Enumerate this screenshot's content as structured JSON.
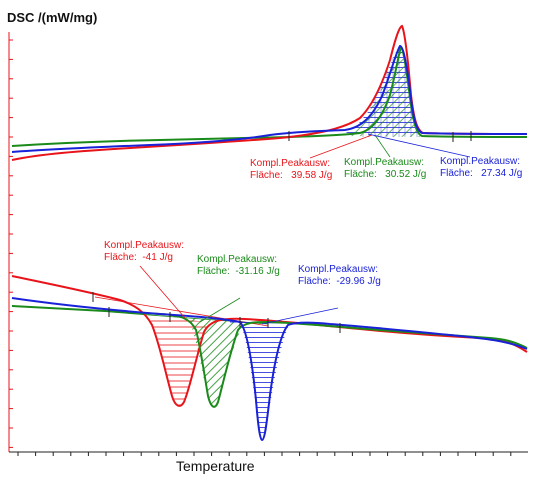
{
  "chart_data": {
    "type": "line",
    "ylabel": "DSC /(mW/mg)",
    "xlabel": "Temperature",
    "grid": false,
    "series": [
      {
        "color": "#e8141a"
      },
      {
        "color": "#1a8a1a"
      },
      {
        "color": "#1a22d8"
      }
    ],
    "annotations": [
      {
        "line1": "Kompl.Peakausw:",
        "line2": "Fläche:   39.58 J/g",
        "color": "#e8141a"
      },
      {
        "line1": "Kompl.Peakausw:",
        "line2": "Fläche:   30.52 J/g",
        "color": "#1a8a1a"
      },
      {
        "line1": "Kompl.Peakausw:",
        "line2": "Fläche:   27.34 J/g",
        "color": "#1a22d8"
      },
      {
        "line1": "Kompl.Peakausw:",
        "line2": "Fläche:  -41 J/g",
        "color": "#e8141a"
      },
      {
        "line1": "Kompl.Peakausw:",
        "line2": "Fläche:  -31.16 J/g",
        "color": "#1a8a1a"
      },
      {
        "line1": "Kompl.Peakausw:",
        "line2": "Fläche:  -29.96 J/g",
        "color": "#1a22d8"
      }
    ]
  }
}
